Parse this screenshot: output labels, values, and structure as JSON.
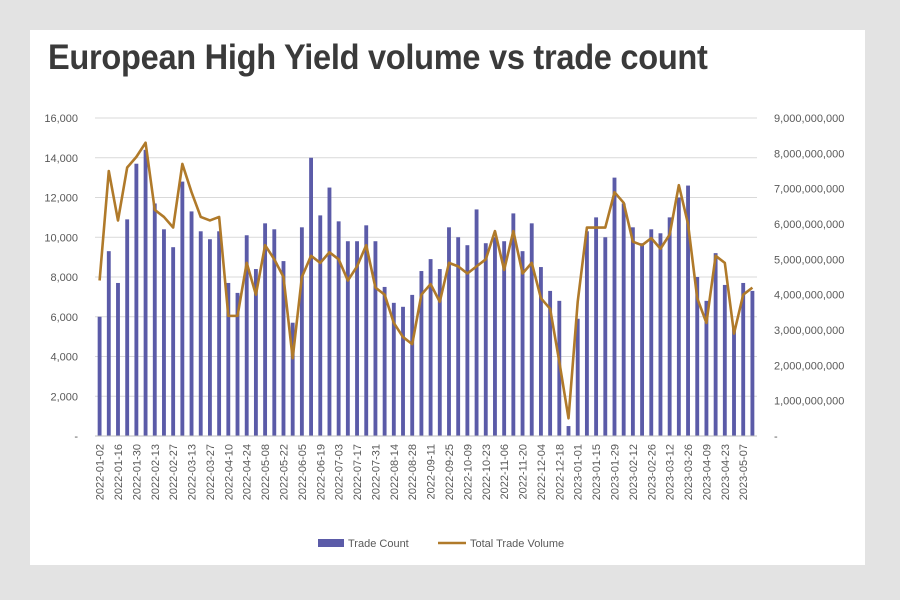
{
  "title": "European High Yield volume vs trade count",
  "chart_data": {
    "type": "bar+line",
    "title": "European High Yield volume vs trade count",
    "categories": [
      "2022-01-02",
      "2022-01-09",
      "2022-01-16",
      "2022-01-23",
      "2022-01-30",
      "2022-02-06",
      "2022-02-13",
      "2022-02-20",
      "2022-02-27",
      "2022-03-06",
      "2022-03-13",
      "2022-03-20",
      "2022-03-27",
      "2022-04-03",
      "2022-04-10",
      "2022-04-17",
      "2022-04-24",
      "2022-05-01",
      "2022-05-08",
      "2022-05-15",
      "2022-05-22",
      "2022-05-29",
      "2022-06-05",
      "2022-06-12",
      "2022-06-19",
      "2022-06-26",
      "2022-07-03",
      "2022-07-10",
      "2022-07-17",
      "2022-07-24",
      "2022-07-31",
      "2022-08-07",
      "2022-08-14",
      "2022-08-21",
      "2022-08-28",
      "2022-09-04",
      "2022-09-11",
      "2022-09-18",
      "2022-09-25",
      "2022-10-02",
      "2022-10-09",
      "2022-10-16",
      "2022-10-23",
      "2022-10-30",
      "2022-11-06",
      "2022-11-13",
      "2022-11-20",
      "2022-11-27",
      "2022-12-04",
      "2022-12-11",
      "2022-12-18",
      "2022-12-25",
      "2023-01-01",
      "2023-01-08",
      "2023-01-15",
      "2023-01-22",
      "2023-01-29",
      "2023-02-05",
      "2023-02-12",
      "2023-02-19",
      "2023-02-26",
      "2023-03-05",
      "2023-03-12",
      "2023-03-19",
      "2023-03-26",
      "2023-04-02",
      "2023-04-09",
      "2023-04-16",
      "2023-04-23",
      "2023-04-30",
      "2023-05-07",
      "2023-05-14"
    ],
    "x_tick_labels": [
      "2022-01-02",
      "2022-01-16",
      "2022-01-30",
      "2022-02-13",
      "2022-02-27",
      "2022-03-13",
      "2022-03-27",
      "2022-04-10",
      "2022-04-24",
      "2022-05-08",
      "2022-05-22",
      "2022-06-05",
      "2022-06-19",
      "2022-07-03",
      "2022-07-17",
      "2022-07-31",
      "2022-08-14",
      "2022-08-28",
      "2022-09-11",
      "2022-09-25",
      "2022-10-09",
      "2022-10-23",
      "2022-11-06",
      "2022-11-20",
      "2022-12-04",
      "2022-12-18",
      "2023-01-01",
      "2023-01-15",
      "2023-01-29",
      "2023-02-12",
      "2023-02-26",
      "2023-03-12",
      "2023-03-26",
      "2023-04-09",
      "2023-04-23",
      "2023-05-07"
    ],
    "series": [
      {
        "name": "Trade Count",
        "type": "bar",
        "axis": "left",
        "color": "#5b5ba8",
        "values": [
          6000,
          9300,
          7700,
          10900,
          13700,
          14400,
          11700,
          10400,
          9500,
          12800,
          11300,
          10300,
          9900,
          10300,
          7700,
          7200,
          10100,
          8400,
          10700,
          10400,
          8800,
          5700,
          10500,
          14000,
          11100,
          12500,
          10800,
          9800,
          9800,
          10600,
          9800,
          7500,
          6700,
          6500,
          7100,
          8300,
          8900,
          8400,
          10500,
          10000,
          9600,
          11400,
          9700,
          10000,
          9800,
          11200,
          9300,
          10700,
          8500,
          7300,
          6800,
          500,
          5900,
          10300,
          11000,
          10000,
          13000,
          11700,
          10500,
          9700,
          10400,
          10200,
          11000,
          12000,
          12600,
          8000,
          6800,
          9200,
          7600,
          5500,
          7700,
          7300
        ]
      },
      {
        "name": "Total Trade Volume",
        "type": "line",
        "axis": "right",
        "color": "#b07a2a",
        "values": [
          4400000000,
          7500000000,
          6100000000,
          7600000000,
          7900000000,
          8300000000,
          6400000000,
          6200000000,
          5900000000,
          7700000000,
          6900000000,
          6200000000,
          6100000000,
          6200000000,
          3400000000,
          3400000000,
          4900000000,
          4000000000,
          5400000000,
          5000000000,
          4500000000,
          2200000000,
          4500000000,
          5100000000,
          4900000000,
          5200000000,
          5000000000,
          4400000000,
          4800000000,
          5400000000,
          4200000000,
          4000000000,
          3200000000,
          2800000000,
          2600000000,
          4000000000,
          4300000000,
          3800000000,
          4900000000,
          4800000000,
          4600000000,
          4800000000,
          5000000000,
          5800000000,
          4700000000,
          5800000000,
          4600000000,
          4900000000,
          3900000000,
          3600000000,
          2100000000,
          500000000,
          3800000000,
          5900000000,
          5900000000,
          5900000000,
          6900000000,
          6600000000,
          5500000000,
          5400000000,
          5600000000,
          5300000000,
          5700000000,
          7100000000,
          6000000000,
          3900000000,
          3200000000,
          5100000000,
          4900000000,
          2900000000,
          4000000000,
          4200000000
        ]
      }
    ],
    "y_left": {
      "ylim": [
        0,
        16000
      ],
      "ticks": [
        0,
        2000,
        4000,
        6000,
        8000,
        10000,
        12000,
        14000,
        16000
      ],
      "tick_labels": [
        "-",
        "2,000",
        "4,000",
        "6,000",
        "8,000",
        "10,000",
        "12,000",
        "14,000",
        "16,000"
      ]
    },
    "y_right": {
      "ylim": [
        0,
        9000000000
      ],
      "ticks": [
        0,
        1000000000,
        2000000000,
        3000000000,
        4000000000,
        5000000000,
        6000000000,
        7000000000,
        8000000000,
        9000000000
      ],
      "tick_labels": [
        "-",
        "1,000,000,000",
        "2,000,000,000",
        "3,000,000,000",
        "4,000,000,000",
        "5,000,000,000",
        "6,000,000,000",
        "7,000,000,000",
        "8,000,000,000",
        "9,000,000,000"
      ]
    },
    "grid": true,
    "legend": {
      "position": "bottom-center",
      "entries": [
        "Trade Count",
        "Total Trade Volume"
      ]
    }
  }
}
